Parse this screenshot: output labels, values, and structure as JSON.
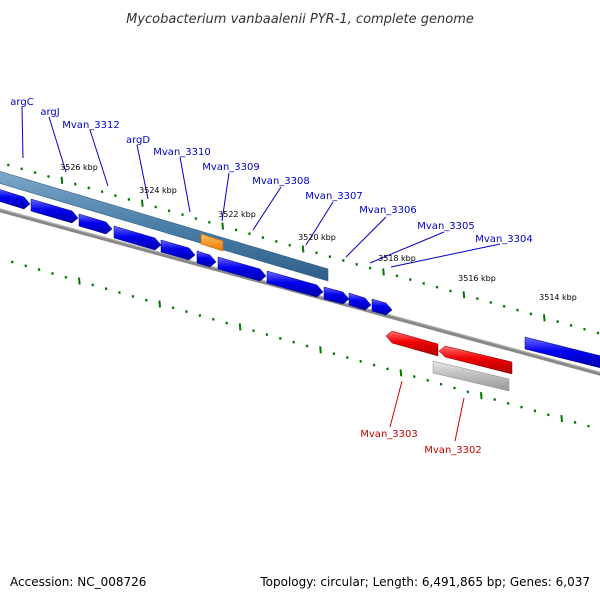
{
  "title": "Mycobacterium vanbaalenii PYR-1, complete genome",
  "footer": {
    "accession": "Accession: NC_008726",
    "summary": "Topology: circular; Length: 6,491,865 bp; Genes: 6,037"
  },
  "colors": {
    "forward_gene": "#0000ee",
    "reverse_gene": "#ee0000",
    "highlight": "#ff8800",
    "label_forward": "#0000cc",
    "label_reverse": "#cc0000",
    "tick": "#007700",
    "backbone": "#777777",
    "selected_band": "#4a7fa8",
    "gray_feature": "#bbbbbb"
  },
  "scale_labels": [
    "3526 kbp",
    "3524 kbp",
    "3522 kbp",
    "3520 kbp",
    "3518 kbp",
    "3516 kbp",
    "3514 kbp"
  ],
  "forward_labels": [
    "argC",
    "argJ",
    "Mvan_3312",
    "argD",
    "Mvan_3310",
    "Mvan_3309",
    "Mvan_3308",
    "Mvan_3307",
    "Mvan_3306",
    "Mvan_3305",
    "Mvan_3304"
  ],
  "reverse_labels": [
    "Mvan_3303",
    "Mvan_3302"
  ]
}
